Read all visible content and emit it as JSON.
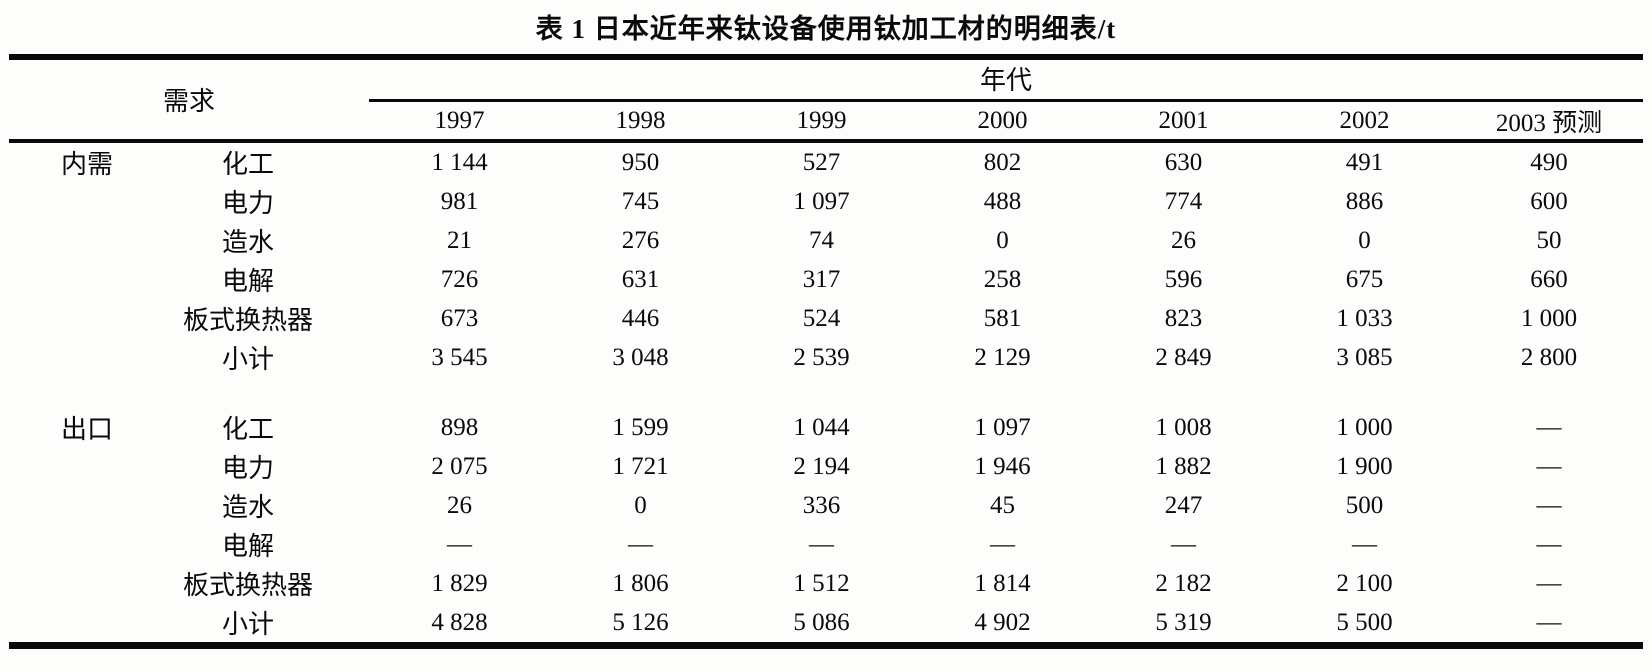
{
  "title": "表 1  日本近年来钛设备使用钛加工材的明细表/t",
  "table": {
    "demand_header": "需求",
    "era_header": "年代",
    "years": [
      "1997",
      "1998",
      "1999",
      "2000",
      "2001",
      "2002",
      "2003 预测"
    ],
    "sections": [
      {
        "name": "内需",
        "rows": [
          {
            "item": "化工",
            "values": [
              "1 144",
              "950",
              "527",
              "802",
              "630",
              "491",
              "490"
            ]
          },
          {
            "item": "电力",
            "values": [
              "981",
              "745",
              "1 097",
              "488",
              "774",
              "886",
              "600"
            ]
          },
          {
            "item": "造水",
            "values": [
              "21",
              "276",
              "74",
              "0",
              "26",
              "0",
              "50"
            ]
          },
          {
            "item": "电解",
            "values": [
              "726",
              "631",
              "317",
              "258",
              "596",
              "675",
              "660"
            ]
          },
          {
            "item": "板式换热器",
            "values": [
              "673",
              "446",
              "524",
              "581",
              "823",
              "1 033",
              "1 000"
            ]
          },
          {
            "item": "小计",
            "values": [
              "3 545",
              "3 048",
              "2 539",
              "2 129",
              "2 849",
              "3 085",
              "2 800"
            ]
          }
        ]
      },
      {
        "name": "出口",
        "rows": [
          {
            "item": "化工",
            "values": [
              "898",
              "1 599",
              "1 044",
              "1 097",
              "1 008",
              "1 000",
              "—"
            ]
          },
          {
            "item": "电力",
            "values": [
              "2 075",
              "1 721",
              "2 194",
              "1 946",
              "1 882",
              "1 900",
              "—"
            ]
          },
          {
            "item": "造水",
            "values": [
              "26",
              "0",
              "336",
              "45",
              "247",
              "500",
              "—"
            ]
          },
          {
            "item": "电解",
            "values": [
              "—",
              "—",
              "—",
              "—",
              "—",
              "—",
              "—"
            ]
          },
          {
            "item": "板式换热器",
            "values": [
              "1 829",
              "1 806",
              "1 512",
              "1 814",
              "2 182",
              "2 100",
              "—"
            ]
          },
          {
            "item": "小计",
            "values": [
              "4 828",
              "5 126",
              "5 086",
              "4 902",
              "5 319",
              "5 500",
              "—"
            ]
          }
        ]
      }
    ]
  }
}
